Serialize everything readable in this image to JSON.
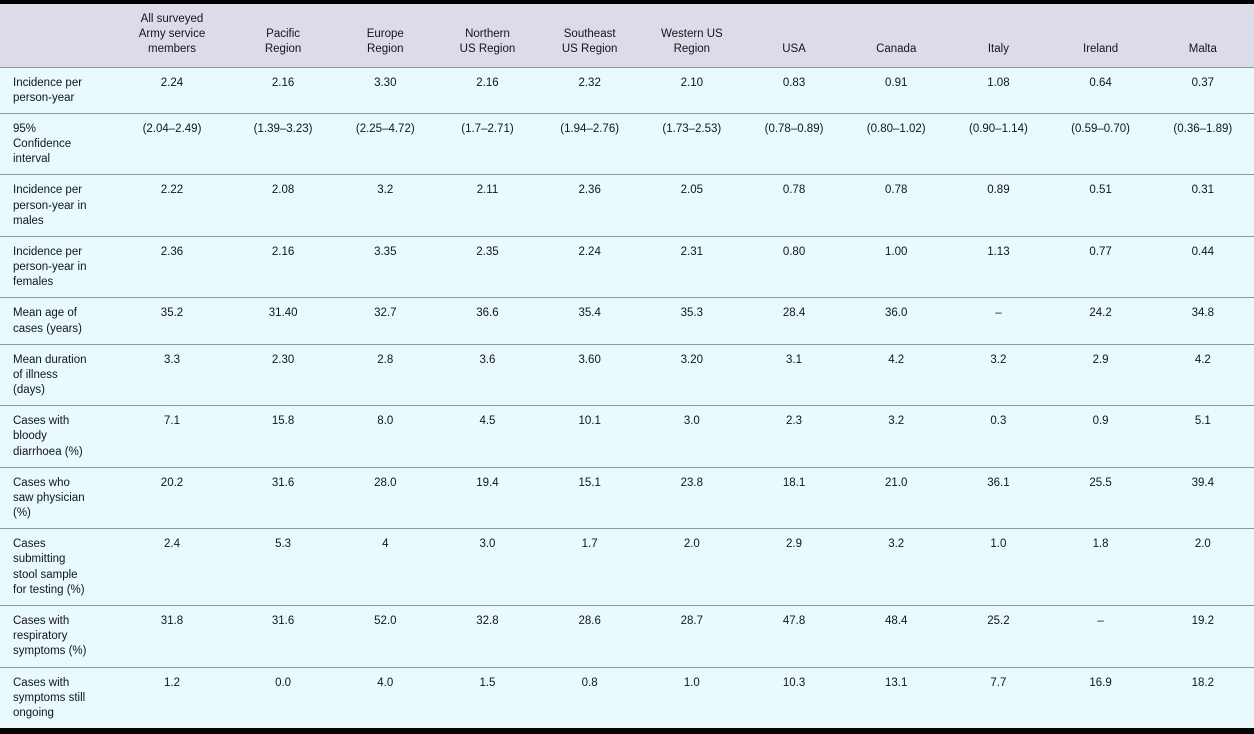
{
  "table": {
    "title_semantic": "Regional incidence and illness characteristics table",
    "corner_label": "",
    "columns": [
      "All surveyed\nArmy service\nmembers",
      "Pacific\nRegion",
      "Europe\nRegion",
      "Northern\nUS Region",
      "Southeast\nUS Region",
      "Western US\nRegion",
      "USA",
      "Canada",
      "Italy",
      "Ireland",
      "Malta"
    ],
    "rows": [
      {
        "label": "Incidence per\nperson-year",
        "values": [
          "2.24",
          "2.16",
          "3.30",
          "2.16",
          "2.32",
          "2.10",
          "0.83",
          "0.91",
          "1.08",
          "0.64",
          "0.37"
        ]
      },
      {
        "label": "95%\nConfidence\ninterval",
        "values": [
          "(2.04–2.49)",
          "(1.39–3.23)",
          "(2.25–4.72)",
          "(1.7–2.71)",
          "(1.94–2.76)",
          "(1.73–2.53)",
          "(0.78–0.89)",
          "(0.80–1.02)",
          "(0.90–1.14)",
          "(0.59–0.70)",
          "(0.36–1.89)"
        ]
      },
      {
        "label": "Incidence per\nperson-year in\nmales",
        "values": [
          "2.22",
          "2.08",
          "3.2",
          "2.11",
          "2.36",
          "2.05",
          "0.78",
          "0.78",
          "0.89",
          "0.51",
          "0.31"
        ]
      },
      {
        "label": "Incidence per\nperson-year in\nfemales",
        "values": [
          "2.36",
          "2.16",
          "3.35",
          "2.35",
          "2.24",
          "2.31",
          "0.80",
          "1.00",
          "1.13",
          "0.77",
          "0.44"
        ]
      },
      {
        "label": "Mean age of\ncases (years)",
        "values": [
          "35.2",
          "31.40",
          "32.7",
          "36.6",
          "35.4",
          "35.3",
          "28.4",
          "36.0",
          "–",
          "24.2",
          "34.8"
        ]
      },
      {
        "label": "Mean duration\nof illness\n(days)",
        "values": [
          "3.3",
          "2.30",
          "2.8",
          "3.6",
          "3.60",
          "3.20",
          "3.1",
          "4.2",
          "3.2",
          "2.9",
          "4.2"
        ]
      },
      {
        "label": "Cases with\nbloody\ndiarrhoea (%)",
        "values": [
          "7.1",
          "15.8",
          "8.0",
          "4.5",
          "10.1",
          "3.0",
          "2.3",
          "3.2",
          "0.3",
          "0.9",
          "5.1"
        ]
      },
      {
        "label": "Cases who\nsaw physician\n(%)",
        "values": [
          "20.2",
          "31.6",
          "28.0",
          "19.4",
          "15.1",
          "23.8",
          "18.1",
          "21.0",
          "36.1",
          "25.5",
          "39.4"
        ]
      },
      {
        "label": "Cases\nsubmitting\nstool sample\nfor testing (%)",
        "values": [
          "2.4",
          "5.3",
          "4",
          "3.0",
          "1.7",
          "2.0",
          "2.9",
          "3.2",
          "1.0",
          "1.8",
          "2.0"
        ]
      },
      {
        "label": "Cases with\nrespiratory\nsymptoms (%)",
        "values": [
          "31.8",
          "31.6",
          "52.0",
          "32.8",
          "28.6",
          "28.7",
          "47.8",
          "48.4",
          "25.2",
          "–",
          "19.2"
        ]
      },
      {
        "label": "Cases with\nsymptoms still\nongoing",
        "values": [
          "1.2",
          "0.0",
          "4.0",
          "1.5",
          "0.8",
          "1.0",
          "10.3",
          "13.1",
          "7.7",
          "16.9",
          "18.2"
        ]
      }
    ]
  },
  "colors": {
    "header_bg": "#dcdbe8",
    "body_bg": "#e8fafb",
    "bar": "#000000",
    "row_divider": "#8f989c",
    "text": "#14141c"
  }
}
